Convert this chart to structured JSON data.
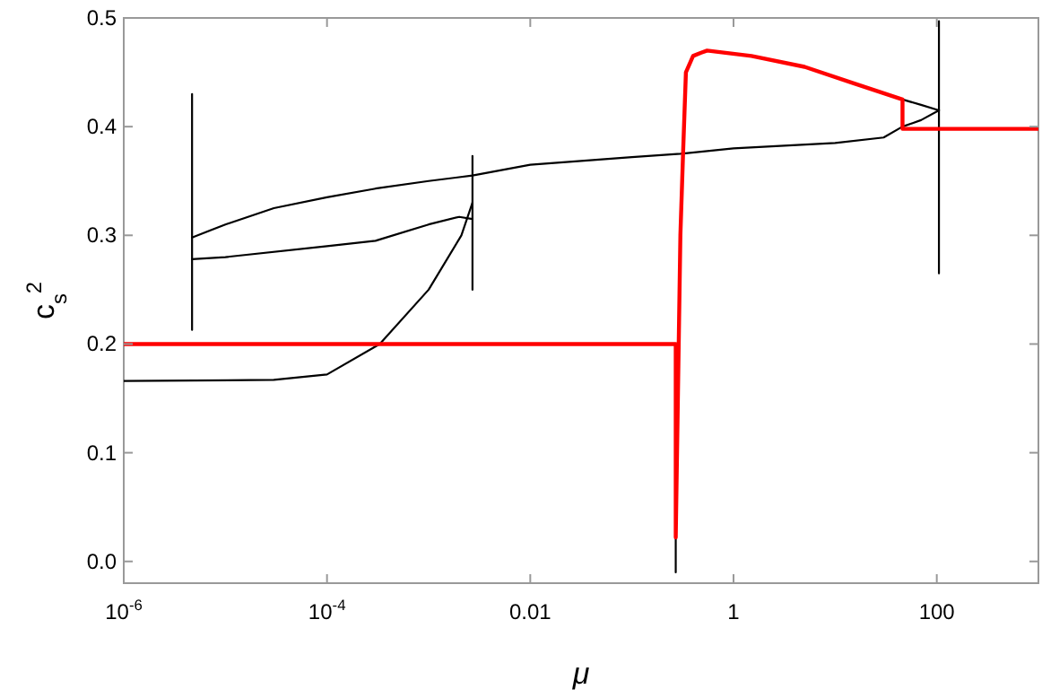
{
  "chart_data": {
    "type": "line",
    "xlabel": "μ",
    "ylabel": "c$_{s}$$^{2}$",
    "log": "x",
    "xlim": [
      1e-06,
      1000
    ],
    "ylim": [
      -0.02,
      0.5
    ],
    "xticks": [
      {
        "value": 1e-06,
        "label": "10$^{-6}$"
      },
      {
        "value": 0.0001,
        "label": "10$^{-4}$"
      },
      0.01,
      1,
      100
    ],
    "yticks": [
      {
        "value": 0,
        "label": "0.0"
      },
      0.1,
      0.2,
      0.3,
      0.4,
      0.5
    ],
    "grid": false,
    "marker": "none",
    "line_style": "solid",
    "series": [
      {
        "color": "#000000",
        "x": [
          4.7e-06,
          1e-05,
          3e-05,
          0.0001,
          0.0003,
          0.001,
          0.0027,
          0.01,
          0.1,
          0.3,
          1,
          10,
          30,
          46,
          70,
          105
        ],
        "values": [
          0.298,
          0.31,
          0.325,
          0.335,
          0.343,
          0.35,
          0.355,
          0.365,
          0.372,
          0.375,
          0.38,
          0.385,
          0.39,
          0.4,
          0.406,
          0.415
        ]
      },
      {
        "color": "#000000",
        "x": [
          4.7e-06,
          1e-05,
          0.0001,
          0.0003,
          0.001,
          0.002,
          0.0027
        ],
        "values": [
          0.278,
          0.28,
          0.29,
          0.295,
          0.31,
          0.317,
          0.315
        ]
      },
      {
        "color": "#000000",
        "x": [
          1e-06,
          3e-05,
          0.0001,
          0.00033,
          0.001,
          0.0021,
          0.0027
        ],
        "values": [
          0.166,
          0.167,
          0.172,
          0.2,
          0.25,
          0.3,
          0.33
        ]
      },
      {
        "color": "#000000",
        "x": [
          46,
          70,
          105
        ],
        "values": [
          0.425,
          0.42,
          0.415
        ]
      },
      {
        "color": "#000000",
        "x": [
          4.7e-06,
          4.7e-06
        ],
        "values": [
          0.213,
          0.43
        ]
      },
      {
        "color": "#000000",
        "x": [
          0.0027,
          0.0027
        ],
        "values": [
          0.25,
          0.373
        ]
      },
      {
        "color": "#000000",
        "x": [
          105,
          105
        ],
        "values": [
          0.265,
          0.497
        ]
      },
      {
        "color": "#000000",
        "x": [
          0.27,
          0.27
        ],
        "values": [
          -0.01,
          0.022
        ]
      },
      {
        "color": "#ff0000",
        "x": [
          1e-06,
          0.27,
          0.27,
          0.3,
          0.32,
          0.34,
          0.4,
          0.48,
          0.55,
          1.5,
          5,
          15,
          46,
          46,
          1000
        ],
        "values": [
          0.2,
          0.2,
          0.022,
          0.3,
          0.38,
          0.45,
          0.465,
          0.468,
          0.47,
          0.465,
          0.455,
          0.44,
          0.425,
          0.398,
          0.398
        ]
      }
    ]
  }
}
